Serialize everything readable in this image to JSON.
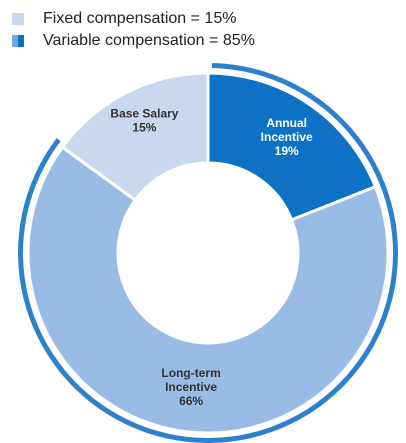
{
  "legend": {
    "fixed_label": "Fixed compensation = 15%",
    "variable_label": "Variable compensation = 85%"
  },
  "colors": {
    "base_salary": "#c8d9ef",
    "annual_incentive": "#0d72c5",
    "long_term_incentive": "#98bce6",
    "outline_ring": "#2c80cc"
  },
  "chart_data": {
    "type": "pie",
    "variant": "donut",
    "slices": [
      {
        "name": "Base Salary",
        "label_lines": [
          "Base Salary",
          "15%"
        ],
        "value": 15,
        "color": "#c8d9ef",
        "text_color": "#333333"
      },
      {
        "name": "Annual Incentive",
        "label_lines": [
          "Annual",
          "Incentive",
          "19%"
        ],
        "value": 19,
        "color": "#0d72c5",
        "text_color": "#ffffff"
      },
      {
        "name": "Long-term Incentive",
        "label_lines": [
          "Long-term",
          "Incentive",
          "66%"
        ],
        "value": 66,
        "color": "#98bce6",
        "text_color": "#333333"
      }
    ],
    "groups": [
      {
        "name": "Fixed compensation",
        "value": 15,
        "members": [
          "Base Salary"
        ]
      },
      {
        "name": "Variable compensation",
        "value": 85,
        "members": [
          "Annual Incentive",
          "Long-term Incentive"
        ]
      }
    ]
  }
}
